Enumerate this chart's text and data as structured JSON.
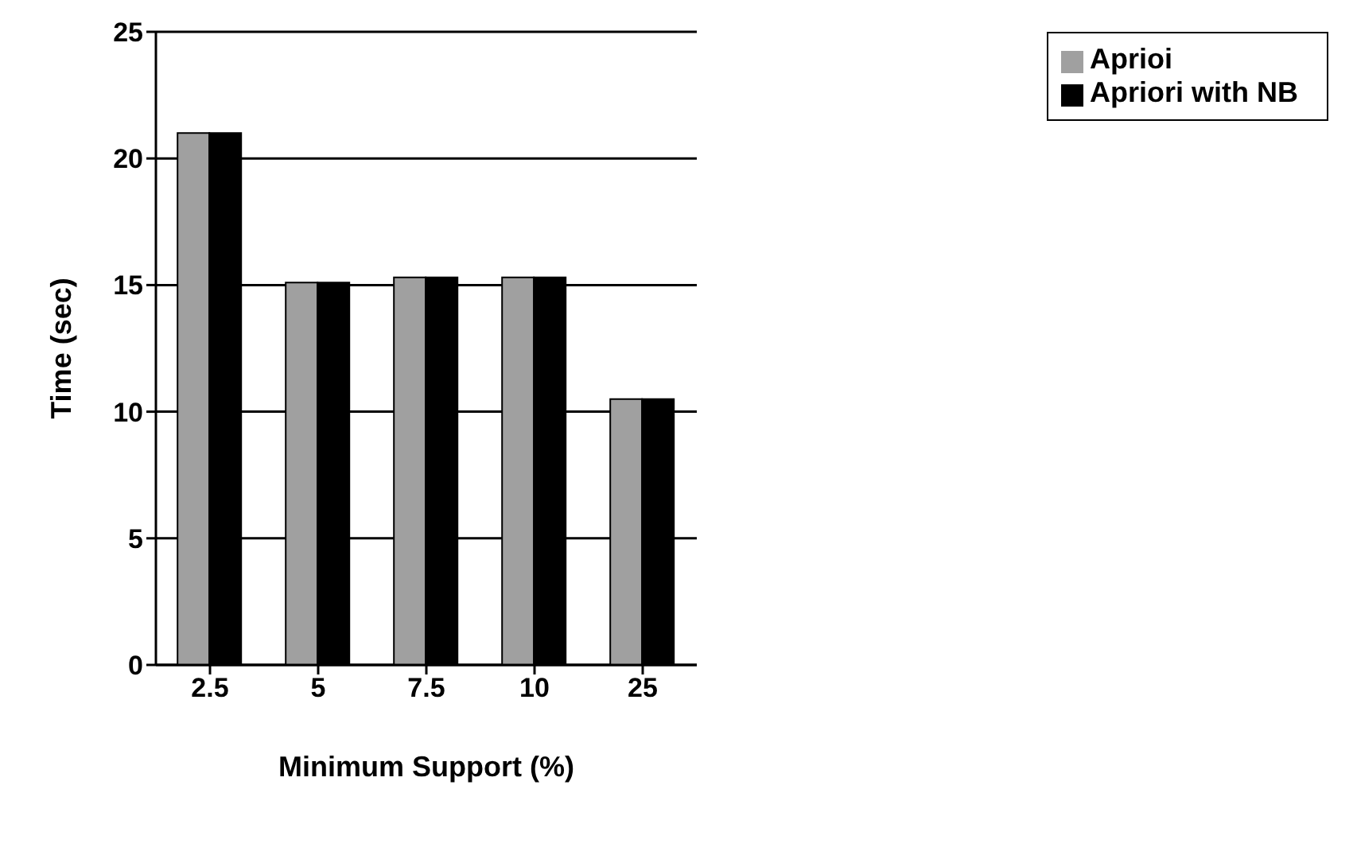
{
  "chart_data": {
    "type": "bar",
    "xlabel": "Minimum Support (%)",
    "ylabel": "Time (sec)",
    "categories": [
      "2.5",
      "5",
      "7.5",
      "10",
      "25"
    ],
    "series": [
      {
        "name": "Aprioi",
        "color": "#a0a0a0",
        "values": [
          21,
          15.1,
          15.3,
          15.3,
          10.5
        ]
      },
      {
        "name": "Apriori with NB",
        "color": "#000000",
        "values": [
          21,
          15.1,
          15.3,
          15.3,
          10.5
        ]
      }
    ],
    "ylim": [
      0,
      25
    ],
    "yticks": [
      0,
      5,
      10,
      15,
      20,
      25
    ],
    "grid": "y",
    "legend": "top right"
  }
}
